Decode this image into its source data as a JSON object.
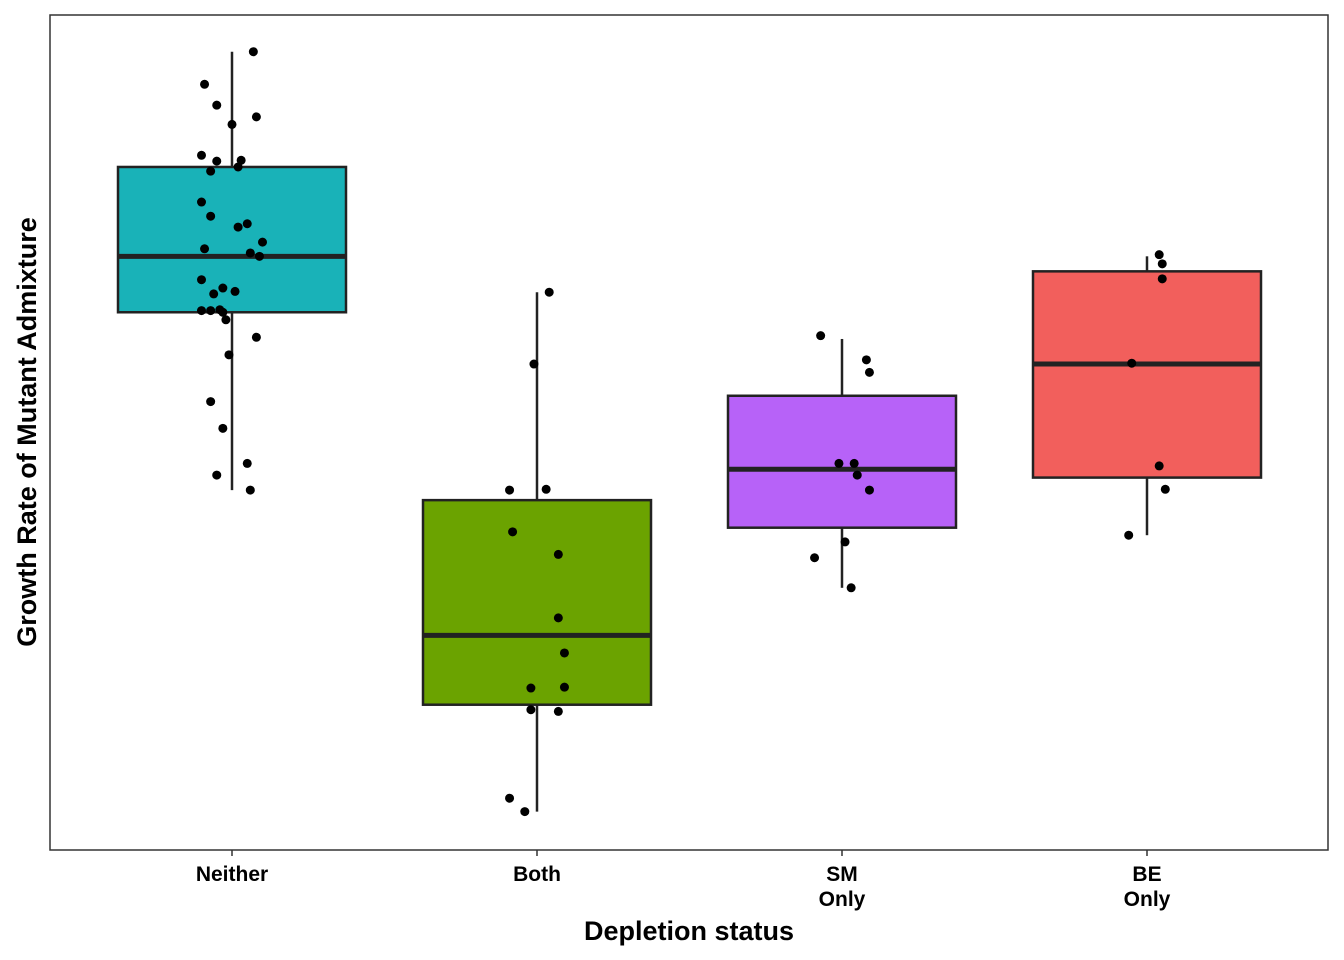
{
  "chart_data": {
    "type": "boxplot",
    "title": "",
    "xlabel": "Depletion status",
    "ylabel": "Growth Rate of Mutant Admixture",
    "y_units_note": "y axis has no tick labels; values on a relative 0-100 scale",
    "ylim": [
      0,
      100
    ],
    "grid": false,
    "legend": "none",
    "categories": [
      {
        "label": [
          "Neither"
        ],
        "color": "#19B2B8",
        "box": {
          "whisker_low": 43.1,
          "q1": 64.4,
          "median": 71.1,
          "q3": 81.8,
          "whisker_high": 95.6
        },
        "points": [
          [
            0.07,
            95.6
          ],
          [
            -0.09,
            91.7
          ],
          [
            -0.05,
            89.2
          ],
          [
            0.08,
            87.8
          ],
          [
            0,
            86.9
          ],
          [
            -0.1,
            83.2
          ],
          [
            -0.05,
            82.5
          ],
          [
            0.03,
            82.6
          ],
          [
            0.02,
            81.8
          ],
          [
            -0.07,
            81.3
          ],
          [
            -0.1,
            77.6
          ],
          [
            -0.07,
            75.9
          ],
          [
            0.05,
            75.0
          ],
          [
            0.02,
            74.6
          ],
          [
            0.1,
            72.8
          ],
          [
            -0.09,
            72.0
          ],
          [
            0.06,
            71.5
          ],
          [
            0.09,
            71.1
          ],
          [
            -0.1,
            68.3
          ],
          [
            -0.03,
            67.3
          ],
          [
            0.01,
            66.9
          ],
          [
            -0.06,
            66.6
          ],
          [
            -0.1,
            64.6
          ],
          [
            -0.07,
            64.6
          ],
          [
            -0.04,
            64.7
          ],
          [
            -0.03,
            64.4
          ],
          [
            -0.02,
            63.5
          ],
          [
            0.08,
            61.4
          ],
          [
            -0.01,
            59.3
          ],
          [
            -0.07,
            53.7
          ],
          [
            -0.03,
            50.5
          ],
          [
            0.05,
            46.3
          ],
          [
            -0.05,
            44.9
          ],
          [
            0.06,
            43.1
          ]
        ]
      },
      {
        "label": [
          "Both"
        ],
        "color": "#6BA300",
        "box": {
          "whisker_low": 4.6,
          "q1": 17.4,
          "median": 25.7,
          "q3": 41.9,
          "whisker_high": 66.8
        },
        "points": [
          [
            0.04,
            66.8
          ],
          [
            -0.01,
            58.2
          ],
          [
            -0.09,
            43.1
          ],
          [
            0.03,
            43.2
          ],
          [
            -0.08,
            38.1
          ],
          [
            0.07,
            35.4
          ],
          [
            0.07,
            27.8
          ],
          [
            0.09,
            23.6
          ],
          [
            -0.02,
            19.4
          ],
          [
            0.09,
            19.5
          ],
          [
            -0.02,
            16.8
          ],
          [
            0.07,
            16.6
          ],
          [
            -0.09,
            6.2
          ],
          [
            -0.04,
            4.6
          ]
        ]
      },
      {
        "label": [
          "SM",
          "Only"
        ],
        "color": "#B762F8",
        "box": {
          "whisker_low": 31.4,
          "q1": 38.6,
          "median": 45.6,
          "q3": 54.4,
          "whisker_high": 61.2
        },
        "points": [
          [
            -0.07,
            61.6
          ],
          [
            0.08,
            58.7
          ],
          [
            0.09,
            57.2
          ],
          [
            -0.01,
            46.3
          ],
          [
            0.04,
            46.3
          ],
          [
            0.05,
            44.9
          ],
          [
            0.09,
            43.1
          ],
          [
            0.01,
            36.9
          ],
          [
            -0.09,
            35.0
          ],
          [
            0.03,
            31.4
          ]
        ]
      },
      {
        "label": [
          "BE",
          "Only"
        ],
        "color": "#F25F5C",
        "box": {
          "whisker_low": 37.7,
          "q1": 44.6,
          "median": 58.2,
          "q3": 69.3,
          "whisker_high": 71.1
        },
        "points": [
          [
            0.04,
            71.3
          ],
          [
            0.05,
            70.2
          ],
          [
            0.05,
            68.4
          ],
          [
            -0.05,
            58.3
          ],
          [
            0.04,
            46.0
          ],
          [
            0.06,
            43.2
          ],
          [
            -0.06,
            37.7
          ]
        ]
      }
    ]
  }
}
